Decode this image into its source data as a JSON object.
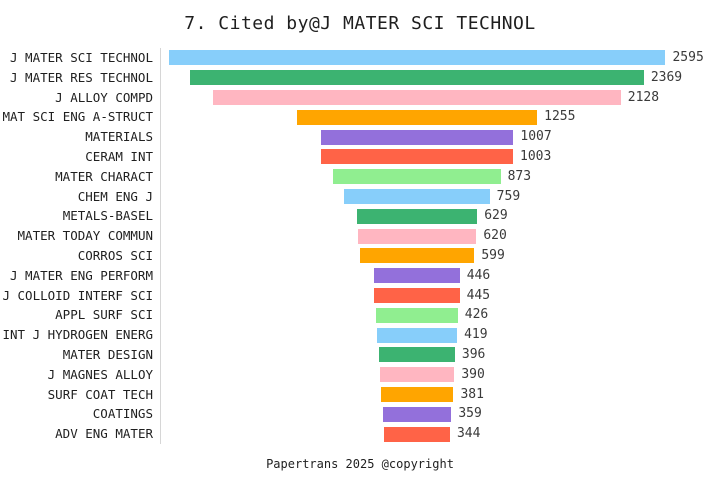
{
  "title": "7. Cited by@J MATER SCI TECHNOL",
  "footer": "Papertrans 2025 @copyright",
  "chart_data": {
    "type": "bar",
    "orientation": "horizontal",
    "layout": "centered-funnel",
    "title": "7. Cited by@J MATER SCI TECHNOL",
    "xlabel": "",
    "ylabel": "",
    "grid": "off",
    "axis_line_color": "#d6d6d6",
    "value_labels_shown": true,
    "categories": [
      "J MATER SCI TECHNOL",
      "J MATER RES TECHNOL",
      "J ALLOY COMPD",
      "MAT SCI ENG A-STRUCT",
      "MATERIALS",
      "CERAM INT",
      "MATER CHARACT",
      "CHEM ENG J",
      "METALS-BASEL",
      "MATER TODAY COMMUN",
      "CORROS SCI",
      "J MATER ENG PERFORM",
      "J COLLOID INTERF SCI",
      "APPL SURF SCI",
      "INT J HYDROGEN ENERG",
      "MATER DESIGN",
      "J MAGNES ALLOY",
      "SURF COAT TECH",
      "COATINGS",
      "ADV ENG MATER"
    ],
    "values": [
      2595,
      2369,
      2128,
      1255,
      1007,
      1003,
      873,
      759,
      629,
      620,
      599,
      446,
      445,
      426,
      419,
      396,
      390,
      381,
      359,
      344
    ],
    "bar_colors_cycle": [
      "#87CEFA",
      "#3CB371",
      "#FFB6C1",
      "#FFA500",
      "#9370DB",
      "#FF6347",
      "#90EE90"
    ],
    "xlim": [
      0,
      2700
    ]
  }
}
